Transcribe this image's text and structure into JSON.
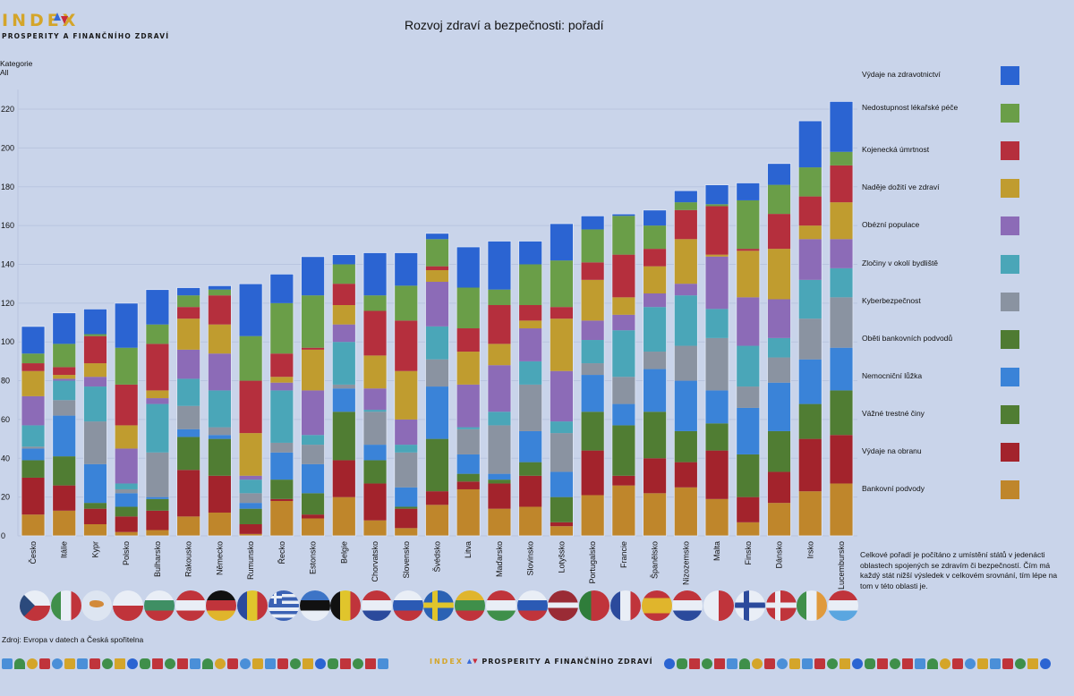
{
  "logo": {
    "index": "INDEX",
    "subtitle": "PROSPERITY A FINANČNÍHO ZDRAVÍ"
  },
  "filter": {
    "label": "Kategorie",
    "value": "All"
  },
  "source": "Zdroj: Evropa v datech a Česká spořitelna",
  "footer_logo": {
    "index": "INDEX",
    "subtitle": "PROSPERITY A FINANČNÍHO ZDRAVÍ"
  },
  "note": "Celkové pořadí je počítáno z umístění států v jedenácti oblastech spojených se zdravím či bezpečností. Čím má každý stát nižší výsledek v celkovém srovnání, tím lépe na tom v této oblasti je.",
  "flags": [
    "cz",
    "it",
    "cy",
    "pl",
    "bg",
    "at",
    "de",
    "ro",
    "gr",
    "ee",
    "be",
    "hr",
    "sk",
    "se",
    "lt",
    "hu",
    "si",
    "lv",
    "pt",
    "fr",
    "es",
    "nl",
    "mt",
    "fi",
    "dk",
    "ie",
    "lu"
  ],
  "chart_data": {
    "type": "bar",
    "stacked": true,
    "title": "Rozvoj zdraví a bezpečnosti: pořadí",
    "xlabel": "",
    "ylabel": "",
    "ylim": [
      0,
      230
    ],
    "yticks": [
      0,
      20,
      40,
      60,
      80,
      100,
      120,
      140,
      160,
      180,
      200,
      220
    ],
    "grid": true,
    "legend_position": "right",
    "categories": [
      "Česko",
      "Itálie",
      "Kypr",
      "Polsko",
      "Bulharsko",
      "Rakousko",
      "Německo",
      "Rumunsko",
      "Řecko",
      "Estonsko",
      "Belgie",
      "Chorvatsko",
      "Slovensko",
      "Švédsko",
      "Litva",
      "Maďarsko",
      "Slovinsko",
      "Lotyšsko",
      "Portugalsko",
      "Francie",
      "Španělsko",
      "Nizozemsko",
      "Malta",
      "Finsko",
      "Dánsko",
      "Irsko",
      "Lucembursko"
    ],
    "series": [
      {
        "name": "Bankovní podvody",
        "color": "#bf862b",
        "values": [
          11,
          13,
          6,
          2,
          3,
          10,
          12,
          1,
          18,
          9,
          20,
          8,
          4,
          16,
          24,
          14,
          15,
          5,
          21,
          26,
          22,
          25,
          19,
          7,
          17,
          23,
          27
        ]
      },
      {
        "name": "Výdaje na obranu",
        "color": "#a3232c",
        "values": [
          19,
          13,
          8,
          8,
          10,
          24,
          19,
          5,
          1,
          2,
          19,
          19,
          10,
          7,
          4,
          13,
          16,
          2,
          23,
          5,
          18,
          13,
          25,
          13,
          16,
          27,
          25
        ]
      },
      {
        "name": "Vážné trestné činy",
        "color": "#507d33",
        "values": [
          9,
          15,
          3,
          5,
          6,
          17,
          19,
          8,
          10,
          11,
          25,
          12,
          1,
          27,
          4,
          2,
          7,
          13,
          20,
          26,
          24,
          16,
          14,
          22,
          21,
          18,
          23
        ]
      },
      {
        "name": "Nemocniční lůžka",
        "color": "#3a83d8",
        "values": [
          6,
          21,
          20,
          7,
          1,
          4,
          2,
          3,
          14,
          15,
          12,
          8,
          10,
          27,
          10,
          3,
          16,
          13,
          19,
          11,
          22,
          26,
          17,
          24,
          25,
          23,
          22
        ]
      },
      {
        "name": "Oběti bankovních podvodů",
        "color": "#4f7b32",
        "values": [
          0,
          0,
          0,
          0,
          0,
          0,
          0,
          0,
          0,
          0,
          0,
          0,
          0,
          0,
          0,
          0,
          0,
          0,
          0,
          0,
          0,
          0,
          0,
          0,
          0,
          0,
          0
        ]
      },
      {
        "name": "Kyberbezpečnost",
        "color": "#8a93a1",
        "values": [
          1,
          8,
          22,
          2,
          23,
          12,
          4,
          5,
          5,
          10,
          2,
          17,
          18,
          14,
          13,
          25,
          24,
          20,
          6,
          14,
          9,
          18,
          27,
          11,
          13,
          21,
          26
        ]
      },
      {
        "name": "Zločiny v okolí bydliště",
        "color": "#4aa6b8",
        "values": [
          11,
          10,
          18,
          3,
          25,
          14,
          19,
          7,
          27,
          5,
          22,
          1,
          4,
          17,
          1,
          7,
          12,
          6,
          12,
          24,
          23,
          26,
          15,
          21,
          10,
          20,
          15
        ]
      },
      {
        "name": "Obézní populace",
        "color": "#8c6bb7",
        "values": [
          15,
          1,
          5,
          18,
          3,
          15,
          19,
          2,
          4,
          23,
          9,
          11,
          13,
          23,
          22,
          24,
          17,
          26,
          10,
          8,
          7,
          6,
          27,
          25,
          20,
          21,
          15
        ]
      },
      {
        "name": "Naděje dožití ve zdraví",
        "color": "#c09c2f",
        "values": [
          13,
          2,
          7,
          12,
          4,
          16,
          15,
          22,
          3,
          21,
          10,
          17,
          25,
          6,
          17,
          11,
          4,
          27,
          21,
          9,
          14,
          23,
          1,
          24,
          26,
          7,
          19
        ]
      },
      {
        "name": "Kojenecká úmrtnost",
        "color": "#b52f3d",
        "values": [
          4,
          4,
          14,
          21,
          24,
          6,
          15,
          27,
          12,
          1,
          11,
          23,
          26,
          2,
          12,
          20,
          8,
          6,
          9,
          22,
          9,
          15,
          25,
          1,
          18,
          15,
          19
        ]
      },
      {
        "name": "Nedostupnost lékařské péče",
        "color": "#6a9e48",
        "values": [
          5,
          12,
          1,
          19,
          10,
          6,
          3,
          23,
          26,
          27,
          10,
          8,
          18,
          14,
          21,
          8,
          21,
          24,
          17,
          20,
          12,
          4,
          1,
          25,
          15,
          15,
          7
        ]
      },
      {
        "name": "Výdaje na zdravotnictví",
        "color": "#2b64d2",
        "values": [
          14,
          16,
          13,
          23,
          18,
          4,
          2,
          27,
          15,
          20,
          5,
          22,
          17,
          3,
          21,
          25,
          12,
          19,
          7,
          1,
          8,
          6,
          10,
          9,
          11,
          24,
          26
        ]
      }
    ]
  }
}
